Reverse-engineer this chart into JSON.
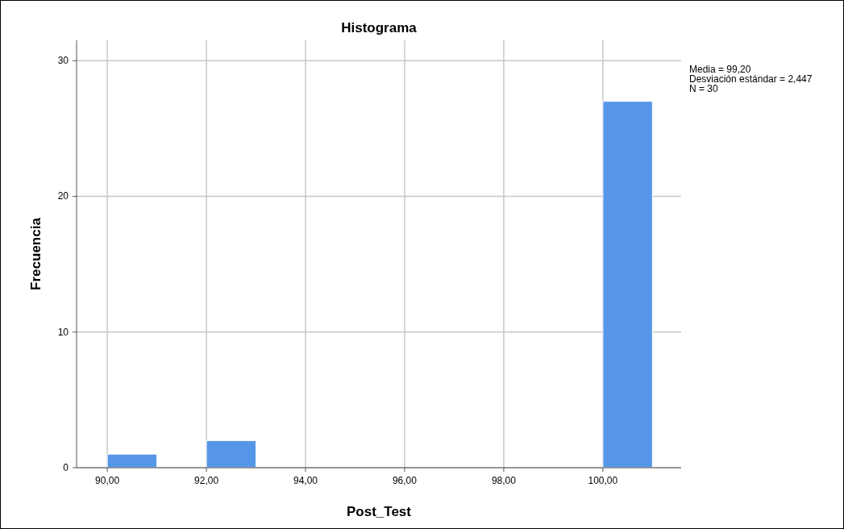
{
  "chart_data": {
    "type": "histogram",
    "title": "Histograma",
    "xlabel": "Post_Test",
    "ylabel": "Frecuencia",
    "bins": [
      90,
      91,
      92,
      93,
      94,
      95,
      96,
      97,
      98,
      99,
      100,
      101
    ],
    "values": [
      1,
      0,
      2,
      0,
      0,
      0,
      0,
      0,
      0,
      0,
      27
    ],
    "color": "#5596e6",
    "xlim": [
      89.38,
      101.58
    ],
    "xticks": [
      {
        "value": 90,
        "label": "90,00"
      },
      {
        "value": 92,
        "label": "92,00"
      },
      {
        "value": 94,
        "label": "94,00"
      },
      {
        "value": 96,
        "label": "96,00"
      },
      {
        "value": 98,
        "label": "98,00"
      },
      {
        "value": 100,
        "label": "100,00"
      }
    ],
    "ylim": [
      0,
      31.5
    ],
    "yticks": [
      0,
      10,
      20,
      30
    ],
    "grid": true,
    "annotations": [
      "Media = 99,20",
      "Desviación estándar = 2,447",
      "N = 30"
    ]
  }
}
